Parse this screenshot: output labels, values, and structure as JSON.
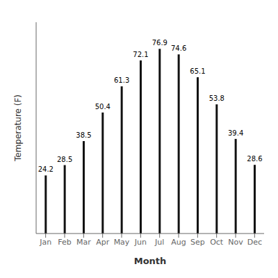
{
  "chart_data": {
    "type": "bar",
    "categories": [
      "Jan",
      "Feb",
      "Mar",
      "Apr",
      "May",
      "Jun",
      "Jul",
      "Aug",
      "Sep",
      "Oct",
      "Nov",
      "Dec"
    ],
    "values": [
      24.2,
      28.5,
      38.5,
      50.4,
      61.3,
      72.1,
      76.9,
      74.6,
      65.1,
      53.8,
      39.4,
      28.6
    ],
    "color": "#111111",
    "xlabel": "Month",
    "ylabel": "Temperature (F)",
    "ylim": [
      0,
      88
    ],
    "grid": false,
    "data_labels": true,
    "tick_labels": "x"
  }
}
